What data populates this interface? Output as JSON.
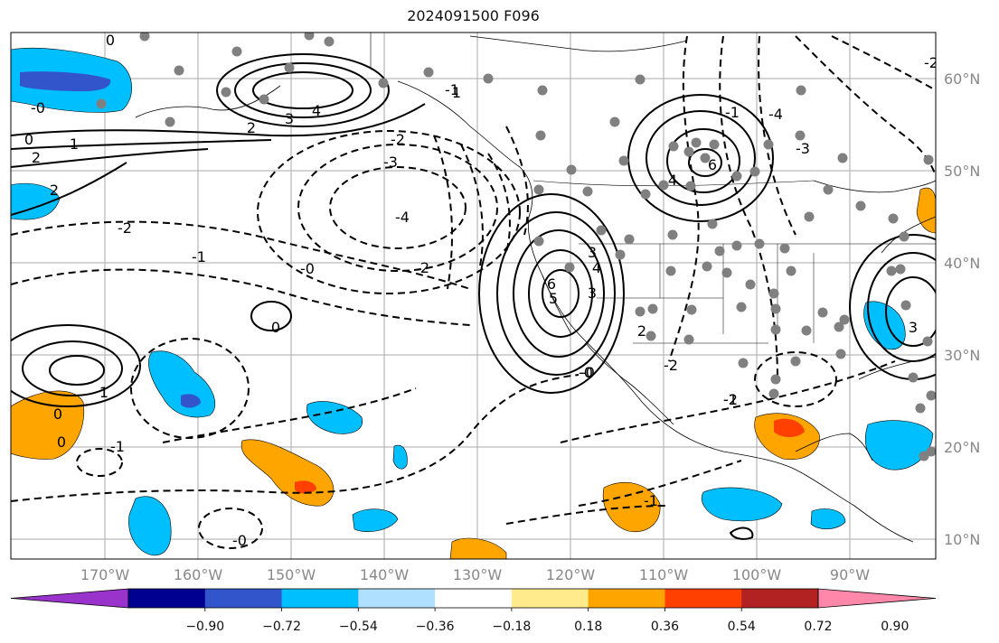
{
  "title": "2024091500 F096",
  "latitude_labels": [
    "60°N",
    "50°N",
    "40°N",
    "30°N",
    "20°N",
    "10°N"
  ],
  "longitude_labels": [
    "170°W",
    "160°W",
    "150°W",
    "140°W",
    "130°W",
    "120°W",
    "110°W",
    "100°W",
    "90°W"
  ],
  "colorbar": {
    "tick_labels": [
      "−0.90",
      "−0.72",
      "−0.54",
      "−0.36",
      "−0.18",
      "0.18",
      "0.36",
      "0.54",
      "0.72",
      "0.90"
    ],
    "colors": [
      "#9933cc",
      "#000090",
      "#3355cc",
      "#00bfff",
      "#b0e0ff",
      "#ffffff",
      "#ffeb8c",
      "#ffa500",
      "#ff4000",
      "#b22222",
      "#ff88aa"
    ]
  },
  "contour_labels": {
    "solid": [
      "0",
      "0",
      "2",
      "3",
      "4",
      "1",
      "2",
      "2",
      "1",
      "0",
      "0",
      "3",
      "4",
      "5",
      "6",
      "6",
      "4",
      "3",
      "2",
      "1",
      "3",
      "0",
      "2"
    ],
    "dashed": [
      "-0",
      "-1",
      "-2",
      "-3",
      "-4",
      "-1",
      "-0",
      "-0",
      "-2",
      "-3",
      "-4",
      "-2",
      "-0",
      "-1",
      "-1",
      "-2",
      "-1",
      "-0",
      "-1",
      "-2"
    ]
  },
  "colors": {
    "negative_fill": "#00bfff",
    "strong_negative_fill": "#3355cc",
    "positive_fill": "#ffa500",
    "strong_positive_fill": "#ff4000",
    "station_marker": "#808080",
    "grid": "#aaaaaa"
  }
}
